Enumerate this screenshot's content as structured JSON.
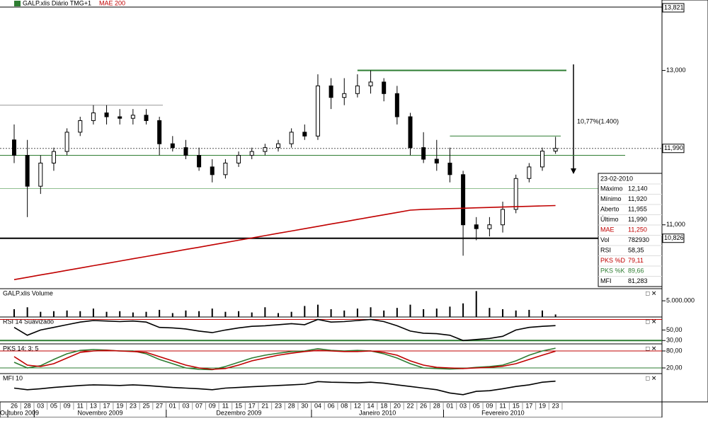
{
  "chart_data": [
    {
      "type": "candlestick",
      "title": "GALP.xlis Diário TMG+1",
      "categories": [
        "26",
        "28",
        "03",
        "05",
        "09",
        "11",
        "13",
        "17",
        "19",
        "23",
        "25",
        "27",
        "01",
        "03",
        "07",
        "09",
        "11",
        "15",
        "17",
        "21",
        "23",
        "28",
        "30",
        "04",
        "06",
        "08",
        "12",
        "14",
        "18",
        "20",
        "22",
        "26",
        "28",
        "01",
        "03",
        "05",
        "09",
        "11",
        "15",
        "17",
        "19",
        "23"
      ],
      "months": [
        "Outubro 2009",
        "Novembro 2009",
        "Dezembro 2009",
        "Janeiro 2010",
        "Fevereiro 2010"
      ],
      "open": [
        12100,
        11900,
        11500,
        11800,
        11950,
        12200,
        12350,
        12450,
        12400,
        12380,
        12420,
        12350,
        12050,
        12000,
        11900,
        11750,
        11650,
        11800,
        11900,
        11950,
        12000,
        12050,
        12200,
        12150,
        12800,
        12650,
        12700,
        12800,
        12850,
        12700,
        12400,
        12000,
        11850,
        11800,
        11650,
        11000,
        10950,
        11000,
        11200,
        11600,
        11750,
        11955
      ],
      "high": [
        12300,
        12100,
        11900,
        12000,
        12250,
        12400,
        12550,
        12550,
        12500,
        12500,
        12500,
        12400,
        12150,
        12100,
        12000,
        11850,
        11850,
        11950,
        12000,
        12050,
        12100,
        12250,
        12300,
        12950,
        12900,
        12900,
        12950,
        13000,
        12900,
        12800,
        12450,
        12200,
        12100,
        12000,
        11700,
        11100,
        11100,
        11300,
        11650,
        11800,
        12000,
        12140
      ],
      "low": [
        11800,
        11100,
        11400,
        11700,
        11900,
        12150,
        12300,
        12300,
        12300,
        12300,
        12300,
        11900,
        11950,
        11850,
        11700,
        11550,
        11600,
        11750,
        11850,
        11900,
        11950,
        12000,
        12100,
        12100,
        12500,
        12550,
        12650,
        12700,
        12600,
        12300,
        11900,
        11800,
        11700,
        11550,
        10600,
        10800,
        10850,
        10900,
        11150,
        11550,
        11700,
        11920
      ],
      "close": [
        11900,
        11500,
        11800,
        11950,
        12200,
        12350,
        12450,
        12400,
        12380,
        12420,
        12350,
        12050,
        12000,
        11900,
        11750,
        11650,
        11800,
        11900,
        11950,
        12000,
        12050,
        12200,
        12150,
        12800,
        12650,
        12700,
        12800,
        12850,
        12700,
        12400,
        12000,
        11850,
        11800,
        11650,
        11000,
        10950,
        11000,
        11200,
        11600,
        11750,
        11955,
        11990
      ],
      "series": [
        {
          "name": "MAE 200",
          "color": "#c00000",
          "values": [
            10290,
            10320,
            10350,
            10380,
            10410,
            10440,
            10470,
            10500,
            10530,
            10560,
            10590,
            10620,
            10650,
            10680,
            10710,
            10740,
            10770,
            10800,
            10830,
            10860,
            10890,
            10920,
            10950,
            10980,
            11010,
            11040,
            11070,
            11100,
            11130,
            11160,
            11190,
            11200,
            11205,
            11210,
            11215,
            11220,
            11225,
            11230,
            11235,
            11240,
            11245,
            11250
          ]
        }
      ],
      "ylim": [
        10200,
        13821
      ],
      "yticks": [
        {
          "value": 11000,
          "label": "11,000"
        },
        {
          "value": 13000,
          "label": "13,000"
        }
      ],
      "price_labels": [
        {
          "value": 13821,
          "label": "13,821"
        },
        {
          "value": 11990,
          "label": "11,990"
        },
        {
          "value": 10826,
          "label": "10,826"
        }
      ],
      "levels": [
        {
          "value": 13000,
          "color": "#2e7d32"
        },
        {
          "value": 12150,
          "color": "#2e7d32"
        },
        {
          "value": 11900,
          "color": "#2e7d32"
        },
        {
          "value": 12550,
          "color": "#999999"
        },
        {
          "value": 11470,
          "color": "#8fbf8f"
        },
        {
          "value": 10826,
          "color": "#000000"
        },
        {
          "value": 11990,
          "color": "#555555"
        }
      ],
      "annotation": "10,77%(1.400)",
      "info_box": {
        "date": "23-02-2010",
        "rows": [
          {
            "label": "Máximo",
            "value": "12,140",
            "color": "#000000"
          },
          {
            "label": "Mínimo",
            "value": "11,920",
            "color": "#000000"
          },
          {
            "label": "Aberto",
            "value": "11,955",
            "color": "#000000"
          },
          {
            "label": "Último",
            "value": "11,990",
            "color": "#000000"
          },
          {
            "label": "MAE",
            "value": "11,250",
            "color": "#c00000"
          },
          {
            "label": "Vol",
            "value": "782930",
            "color": "#000000"
          },
          {
            "label": "RSI",
            "value": "58,35",
            "color": "#000000"
          },
          {
            "label": "PKS %D",
            "value": "79,11",
            "color": "#c00000"
          },
          {
            "label": "PKS %K",
            "value": "89,66",
            "color": "#2e7d32"
          },
          {
            "label": "MFI",
            "value": "81,283",
            "color": "#000000"
          }
        ]
      }
    },
    {
      "type": "bar",
      "title": "GALP.xlis Volume",
      "color": "#000000",
      "values": [
        2400000,
        3000000,
        1600000,
        1800000,
        2000000,
        1800000,
        2600000,
        1600000,
        1800000,
        1400000,
        1600000,
        2200000,
        1200000,
        2000000,
        1800000,
        2600000,
        1600000,
        1800000,
        1400000,
        3000000,
        1200000,
        1600000,
        3400000,
        3800000,
        2400000,
        2000000,
        2600000,
        3000000,
        2000000,
        2800000,
        3800000,
        2400000,
        2600000,
        3200000,
        4200000,
        8000000,
        2800000,
        2400000,
        2000000,
        2200000,
        2000000,
        782930
      ],
      "ylim": [
        0,
        8300000
      ],
      "yticks": [
        {
          "value": 5000000,
          "label": "5.000.000"
        }
      ]
    },
    {
      "type": "line",
      "title": "RSI 14 Suavizado",
      "series": [
        {
          "color": "#000000",
          "values": [
            55,
            40,
            50,
            55,
            60,
            65,
            68,
            67,
            66,
            67,
            65,
            55,
            54,
            52,
            48,
            45,
            50,
            54,
            57,
            58,
            60,
            62,
            60,
            70,
            65,
            66,
            68,
            70,
            66,
            58,
            48,
            44,
            43,
            40,
            30,
            32,
            34,
            38,
            50,
            55,
            57,
            58.35
          ]
        }
      ],
      "ylim": [
        25,
        72
      ],
      "yticks": [
        {
          "value": 50,
          "label": "50,00"
        },
        {
          "value": 30,
          "label": "30,00"
        }
      ],
      "levels": [
        {
          "value": 70,
          "color": "#c00000"
        },
        {
          "value": 30,
          "color": "#2e7d32"
        }
      ]
    },
    {
      "type": "line",
      "title": "PKS 14; 3; 5",
      "series": [
        {
          "color": "#2e7d32",
          "values": [
            40,
            20,
            28,
            50,
            70,
            82,
            85,
            83,
            80,
            80,
            70,
            50,
            35,
            20,
            15,
            14,
            25,
            40,
            55,
            65,
            72,
            78,
            80,
            88,
            82,
            80,
            82,
            80,
            70,
            55,
            35,
            20,
            18,
            16,
            18,
            22,
            25,
            30,
            45,
            65,
            80,
            89.66
          ]
        },
        {
          "color": "#c00000",
          "values": [
            60,
            30,
            25,
            35,
            55,
            75,
            80,
            82,
            80,
            78,
            75,
            60,
            45,
            30,
            20,
            15,
            18,
            30,
            45,
            55,
            65,
            72,
            78,
            82,
            80,
            78,
            78,
            80,
            75,
            65,
            45,
            30,
            22,
            20,
            18,
            20,
            22,
            26,
            35,
            50,
            65,
            79.11
          ]
        }
      ],
      "ylim": [
        0,
        100
      ],
      "yticks": [
        {
          "value": 80,
          "label": "80,00"
        },
        {
          "value": 20,
          "label": "20,00"
        }
      ],
      "levels": [
        {
          "value": 80,
          "color": "#c00000"
        },
        {
          "value": 20,
          "color": "#2e7d32"
        }
      ]
    },
    {
      "type": "line",
      "title": "MFI 10",
      "series": [
        {
          "color": "#000000",
          "values": [
            60,
            55,
            58,
            62,
            65,
            68,
            70,
            69,
            68,
            70,
            68,
            65,
            62,
            60,
            58,
            55,
            60,
            62,
            64,
            66,
            68,
            70,
            72,
            80,
            78,
            77,
            76,
            78,
            75,
            70,
            65,
            60,
            55,
            45,
            40,
            50,
            52,
            58,
            65,
            70,
            78,
            81.283
          ]
        }
      ],
      "ylim": [
        20,
        100
      ]
    }
  ]
}
